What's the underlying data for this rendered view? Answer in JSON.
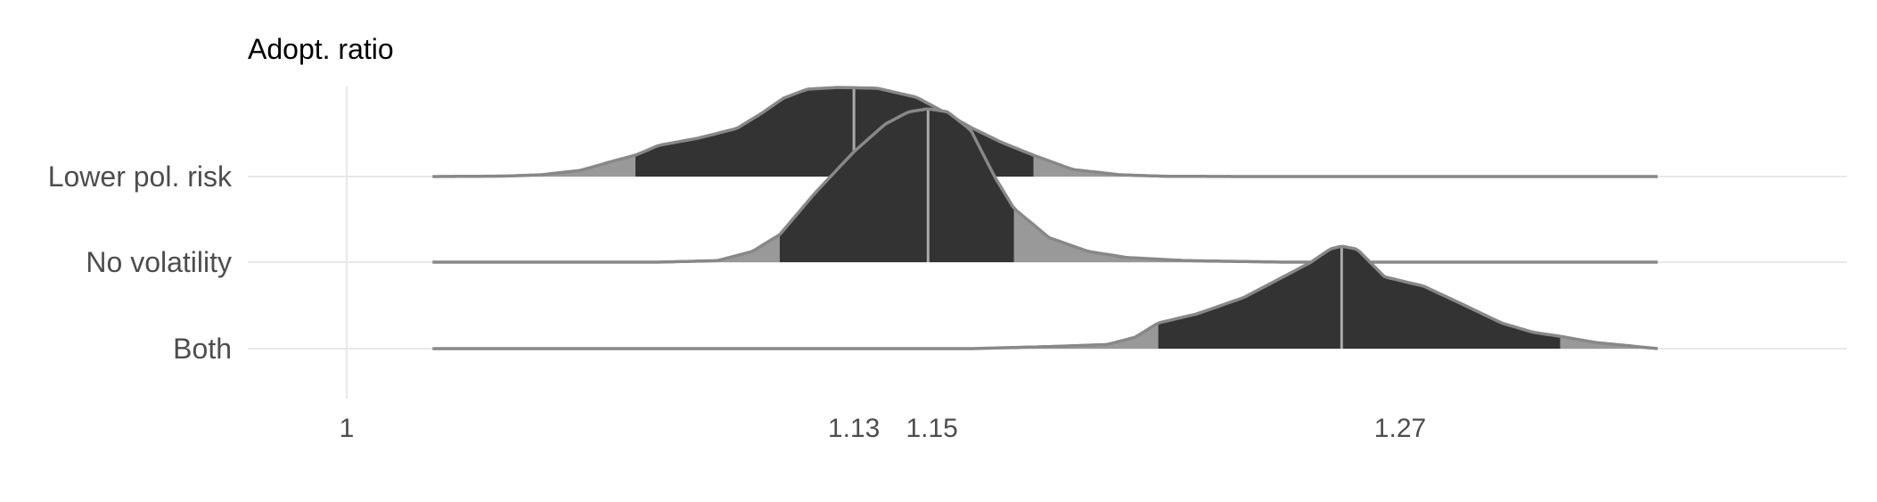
{
  "chart_data": {
    "type": "density-ridgeline",
    "title": "Adopt. ratio",
    "xlabel": "",
    "ylabel": "",
    "xlim": [
      0.975,
      1.395
    ],
    "grid": true,
    "x_ticks": [
      1,
      1.13,
      1.15,
      1.27
    ],
    "x_tick_labels": [
      "1",
      "1.13",
      "1.15",
      "1.27"
    ],
    "categories": [
      "Lower pol. risk",
      "No volatility",
      "Both"
    ],
    "series": [
      {
        "name": "Lower pol. risk",
        "median": 1.13,
        "interval": [
          1.074,
          1.176
        ],
        "x_range": [
          1.022,
          1.336
        ],
        "density": [
          [
            1.022,
            0.0
          ],
          [
            1.04,
            0.005
          ],
          [
            1.05,
            0.02
          ],
          [
            1.06,
            0.07
          ],
          [
            1.068,
            0.17
          ],
          [
            1.074,
            0.24
          ],
          [
            1.08,
            0.35
          ],
          [
            1.09,
            0.43
          ],
          [
            1.1,
            0.54
          ],
          [
            1.106,
            0.7
          ],
          [
            1.112,
            0.88
          ],
          [
            1.118,
            0.98
          ],
          [
            1.126,
            1.0
          ],
          [
            1.136,
            0.99
          ],
          [
            1.146,
            0.89
          ],
          [
            1.152,
            0.75
          ],
          [
            1.16,
            0.55
          ],
          [
            1.168,
            0.38
          ],
          [
            1.176,
            0.24
          ],
          [
            1.186,
            0.08
          ],
          [
            1.198,
            0.02
          ],
          [
            1.21,
            0.003
          ],
          [
            1.23,
            0.0
          ],
          [
            1.336,
            0.0
          ]
        ]
      },
      {
        "name": "No volatility",
        "median": 1.149,
        "interval": [
          1.111,
          1.171
        ],
        "x_range": [
          1.022,
          1.336
        ],
        "density": [
          [
            1.022,
            0.0
          ],
          [
            1.08,
            0.0
          ],
          [
            1.095,
            0.01
          ],
          [
            1.104,
            0.07
          ],
          [
            1.111,
            0.18
          ],
          [
            1.12,
            0.45
          ],
          [
            1.13,
            0.72
          ],
          [
            1.138,
            0.9
          ],
          [
            1.144,
            0.98
          ],
          [
            1.149,
            1.0
          ],
          [
            1.154,
            0.98
          ],
          [
            1.16,
            0.86
          ],
          [
            1.166,
            0.56
          ],
          [
            1.171,
            0.35
          ],
          [
            1.18,
            0.16
          ],
          [
            1.19,
            0.07
          ],
          [
            1.2,
            0.03
          ],
          [
            1.215,
            0.01
          ],
          [
            1.24,
            0.0
          ],
          [
            1.336,
            0.0
          ]
        ]
      },
      {
        "name": "Both",
        "median": 1.255,
        "interval": [
          1.208,
          1.311
        ],
        "x_range": [
          1.022,
          1.336
        ],
        "density": [
          [
            1.022,
            0.0
          ],
          [
            1.16,
            0.0
          ],
          [
            1.18,
            0.02
          ],
          [
            1.195,
            0.04
          ],
          [
            1.202,
            0.11
          ],
          [
            1.208,
            0.25
          ],
          [
            1.218,
            0.34
          ],
          [
            1.23,
            0.5
          ],
          [
            1.24,
            0.7
          ],
          [
            1.247,
            0.84
          ],
          [
            1.252,
            0.97
          ],
          [
            1.255,
            1.0
          ],
          [
            1.259,
            0.97
          ],
          [
            1.266,
            0.7
          ],
          [
            1.276,
            0.61
          ],
          [
            1.285,
            0.45
          ],
          [
            1.296,
            0.25
          ],
          [
            1.304,
            0.16
          ],
          [
            1.311,
            0.12
          ],
          [
            1.32,
            0.06
          ],
          [
            1.336,
            0.0
          ]
        ]
      }
    ],
    "colors": {
      "fill_inner": "#333333",
      "fill_tail": "#999999",
      "outline": "#888888",
      "median_line": "#aaaaaa",
      "grid": "#e8e8e8",
      "baseline": "#8a8a8a"
    }
  }
}
